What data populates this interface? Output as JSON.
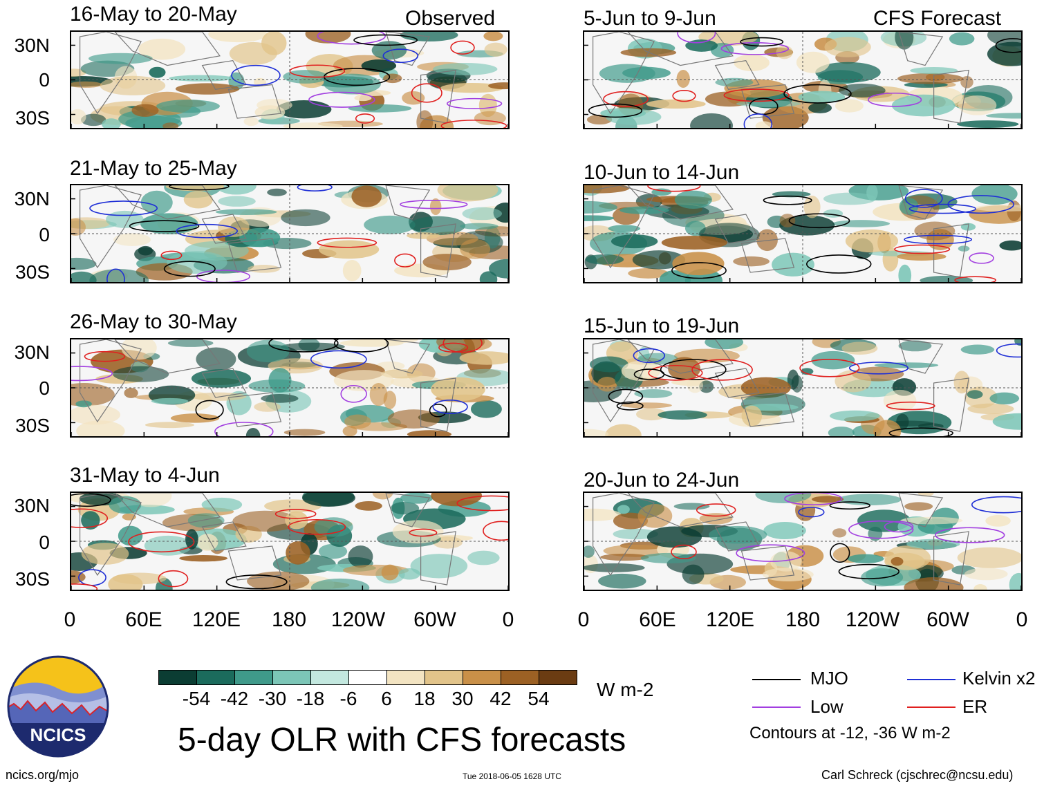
{
  "header": {
    "observed_label": "Observed",
    "forecast_label": "CFS Forecast"
  },
  "panels_left": [
    {
      "title": "16-May to 20-May"
    },
    {
      "title": "21-May to 25-May"
    },
    {
      "title": "26-May to 30-May"
    },
    {
      "title": "31-May to 4-Jun"
    }
  ],
  "panels_right": [
    {
      "title": "5-Jun to 9-Jun"
    },
    {
      "title": "10-Jun to 14-Jun"
    },
    {
      "title": "15-Jun to 19-Jun"
    },
    {
      "title": "20-Jun to 24-Jun"
    }
  ],
  "lat_labels": [
    "30N",
    "0",
    "30S"
  ],
  "lon_labels": [
    "0",
    "60E",
    "120E",
    "180",
    "120W",
    "60W",
    "0"
  ],
  "colorbar": {
    "colors": [
      "#0b3d33",
      "#1b6b5c",
      "#3f9a8a",
      "#7cc6b7",
      "#c3e8df",
      "#ffffff",
      "#f3e4c2",
      "#e2c48a",
      "#c99048",
      "#9c6124",
      "#6b3c12"
    ],
    "labels": [
      "-54",
      "-42",
      "-30",
      "-18",
      "-6",
      "6",
      "18",
      "30",
      "42",
      "54"
    ],
    "units": "W m-2"
  },
  "title": "5-day OLR with CFS forecasts",
  "legend": {
    "items": [
      {
        "label": "MJO",
        "color": "#000000"
      },
      {
        "label": "Kelvin x2",
        "color": "#1f2fd6"
      },
      {
        "label": "Low",
        "color": "#a23fe0"
      },
      {
        "label": "ER",
        "color": "#e0201f"
      }
    ],
    "contours_note": "Contours at -12, -36 W m-2"
  },
  "logo": {
    "text": "NCICS"
  },
  "footer": {
    "url": "ncics.org/mjo",
    "timestamp": "Tue 2018-06-05 1628 UTC",
    "credit": "Carl Schreck (cjschrec@ncsu.edu)"
  }
}
